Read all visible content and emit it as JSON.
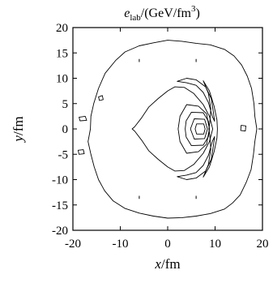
{
  "chart_data": {
    "type": "contour",
    "title": {
      "symbol": "e",
      "subscript": "lab",
      "unit_prefix": "/(GeV/fm",
      "unit_exponent": "3",
      "unit_suffix": ")"
    },
    "xlabel": {
      "symbol": "x",
      "unit": "/fm"
    },
    "ylabel": {
      "symbol": "y",
      "unit": "/fm"
    },
    "xlim": [
      -20,
      20
    ],
    "ylim": [
      -20,
      20
    ],
    "xticks": [
      -20,
      -10,
      0,
      10,
      20
    ],
    "yticks": [
      -20,
      -15,
      -10,
      -5,
      0,
      5,
      10,
      15,
      20
    ],
    "grid": false,
    "contours": [
      {
        "id": "outer-ring",
        "points": [
          [
            -3,
            17
          ],
          [
            0,
            17.5
          ],
          [
            3,
            17.3
          ],
          [
            6,
            16.9
          ],
          [
            9,
            16.6
          ],
          [
            12,
            15.7
          ],
          [
            14,
            14.4
          ],
          [
            15.6,
            12.6
          ],
          [
            16.8,
            10.4
          ],
          [
            17.7,
            8
          ],
          [
            18.2,
            5
          ],
          [
            18.4,
            2.5
          ],
          [
            18.8,
            0
          ],
          [
            18.4,
            -2.5
          ],
          [
            18.1,
            -5
          ],
          [
            17.6,
            -8
          ],
          [
            16.6,
            -10.5
          ],
          [
            15.3,
            -13
          ],
          [
            13.7,
            -14.6
          ],
          [
            12,
            -15.8
          ],
          [
            9,
            -16.7
          ],
          [
            6,
            -17.2
          ],
          [
            3,
            -17.5
          ],
          [
            0,
            -17.6
          ],
          [
            -3,
            -17.2
          ],
          [
            -6,
            -16.6
          ],
          [
            -9,
            -15.7
          ],
          [
            -11.5,
            -14.2
          ],
          [
            -13.3,
            -12.2
          ],
          [
            -14.6,
            -10
          ],
          [
            -15.5,
            -7.5
          ],
          [
            -16.2,
            -5
          ],
          [
            -16.8,
            -2.5
          ],
          [
            -16.3,
            0
          ],
          [
            -16.2,
            2.5
          ],
          [
            -15.6,
            5
          ],
          [
            -14.6,
            8
          ],
          [
            -13.2,
            11
          ],
          [
            -11,
            13.5
          ],
          [
            -9,
            15.2
          ],
          [
            -6,
            16.4
          ],
          [
            -3,
            17
          ]
        ]
      },
      {
        "id": "inner-region",
        "points": [
          [
            1.5,
            8.3
          ],
          [
            3.5,
            8.2
          ],
          [
            5.5,
            7
          ],
          [
            7.5,
            4.8
          ],
          [
            8.8,
            2.5
          ],
          [
            9.5,
            0
          ],
          [
            8.8,
            -2.5
          ],
          [
            7.5,
            -4.8
          ],
          [
            5.5,
            -7
          ],
          [
            3.5,
            -8.2
          ],
          [
            1.5,
            -8.3
          ],
          [
            0,
            -7.5
          ],
          [
            -2,
            -6
          ],
          [
            -4,
            -4.3
          ],
          [
            -5.5,
            -2.2
          ],
          [
            -7,
            -0.4
          ],
          [
            -7.5,
            0
          ],
          [
            -7,
            0.4
          ],
          [
            -5.5,
            2.2
          ],
          [
            -4,
            4.3
          ],
          [
            -2,
            6
          ],
          [
            0,
            7.5
          ],
          [
            1.5,
            8.3
          ]
        ]
      },
      {
        "id": "wing-top",
        "points": [
          [
            2,
            9.4
          ],
          [
            4,
            10
          ],
          [
            6,
            9.7
          ],
          [
            8,
            8.3
          ],
          [
            9.2,
            6
          ],
          [
            9.7,
            3
          ],
          [
            9.9,
            1.5
          ],
          [
            9.4,
            2.5
          ],
          [
            8.6,
            5.2
          ],
          [
            7.5,
            7.2
          ],
          [
            6,
            8.6
          ],
          [
            4,
            9.1
          ],
          [
            2,
            9.4
          ]
        ]
      },
      {
        "id": "wing-bottom",
        "points": [
          [
            2,
            -9.4
          ],
          [
            4,
            -10
          ],
          [
            6,
            -9.7
          ],
          [
            8,
            -8.3
          ],
          [
            9.2,
            -6
          ],
          [
            9.7,
            -3
          ],
          [
            9.9,
            -1.5
          ],
          [
            9.4,
            -2.5
          ],
          [
            8.6,
            -5.2
          ],
          [
            7.5,
            -7.2
          ],
          [
            6,
            -8.6
          ],
          [
            4,
            -9.1
          ],
          [
            2,
            -9.4
          ]
        ]
      },
      {
        "id": "core-1",
        "points": [
          [
            4,
            4.8
          ],
          [
            6.5,
            4.5
          ],
          [
            8.2,
            3
          ],
          [
            8.8,
            0
          ],
          [
            8.2,
            -3
          ],
          [
            6.5,
            -4.5
          ],
          [
            4,
            -4.8
          ],
          [
            2.6,
            -2.5
          ],
          [
            2.2,
            0
          ],
          [
            2.6,
            2.5
          ],
          [
            4,
            4.8
          ]
        ]
      },
      {
        "id": "core-2",
        "points": [
          [
            5,
            3.3
          ],
          [
            7.5,
            3.2
          ],
          [
            8.6,
            1.5
          ],
          [
            8.8,
            0
          ],
          [
            8.6,
            -1.5
          ],
          [
            7.5,
            -3.2
          ],
          [
            5,
            -3.3
          ],
          [
            3.9,
            -1.6
          ],
          [
            3.7,
            0
          ],
          [
            3.9,
            1.6
          ],
          [
            5,
            3.3
          ]
        ]
      },
      {
        "id": "core-3",
        "points": [
          [
            5.6,
            2
          ],
          [
            7.8,
            1.9
          ],
          [
            8.4,
            0
          ],
          [
            7.8,
            -1.9
          ],
          [
            5.6,
            -2
          ],
          [
            4.8,
            0
          ],
          [
            5.6,
            2
          ]
        ]
      },
      {
        "id": "core-4",
        "points": [
          [
            6.1,
            1
          ],
          [
            7.6,
            1
          ],
          [
            7.9,
            0
          ],
          [
            7.6,
            -1
          ],
          [
            6.1,
            -1
          ],
          [
            5.8,
            0
          ],
          [
            6.1,
            1
          ]
        ]
      },
      {
        "id": "shock-front",
        "points": [
          [
            7.5,
            9.5
          ],
          [
            8.6,
            7
          ],
          [
            9.1,
            4
          ],
          [
            8.9,
            1.5
          ],
          [
            8.7,
            0
          ],
          [
            8.9,
            -1.5
          ],
          [
            9.1,
            -4
          ],
          [
            8.6,
            -7
          ],
          [
            7.5,
            -9.5
          ],
          [
            8.8,
            -7.5
          ],
          [
            9.8,
            -4.5
          ],
          [
            10.4,
            -1.8
          ],
          [
            10.5,
            0
          ],
          [
            10.4,
            1.8
          ],
          [
            9.8,
            4.5
          ],
          [
            8.8,
            7.5
          ],
          [
            7.5,
            9.5
          ]
        ]
      },
      {
        "id": "blob-left-1",
        "points": [
          [
            -18.7,
            2.3
          ],
          [
            -17.4,
            2.5
          ],
          [
            -17.1,
            1.7
          ],
          [
            -18.5,
            1.6
          ],
          [
            -18.7,
            2.3
          ]
        ]
      },
      {
        "id": "blob-left-2",
        "points": [
          [
            -18.9,
            -4.2
          ],
          [
            -17.8,
            -4.1
          ],
          [
            -17.6,
            -4.9
          ],
          [
            -18.7,
            -5
          ],
          [
            -18.9,
            -4.2
          ]
        ]
      },
      {
        "id": "blob-left-3",
        "points": [
          [
            -14.6,
            6.3
          ],
          [
            -13.8,
            6.6
          ],
          [
            -13.6,
            5.8
          ],
          [
            -14.4,
            5.6
          ],
          [
            -14.6,
            6.3
          ]
        ]
      },
      {
        "id": "blob-right-1",
        "points": [
          [
            15.5,
            0.7
          ],
          [
            16.5,
            0.6
          ],
          [
            16.4,
            -0.4
          ],
          [
            15.4,
            -0.3
          ],
          [
            15.5,
            0.7
          ]
        ]
      }
    ],
    "markers": [
      {
        "id": "tick-upper-left",
        "x": -6,
        "from": 13.2,
        "to": 13.8
      },
      {
        "id": "tick-upper-right",
        "x": 6,
        "from": 13.2,
        "to": 13.8
      },
      {
        "id": "tick-lower-left",
        "x": -6,
        "from": -13.2,
        "to": -13.8
      },
      {
        "id": "tick-lower-right",
        "x": 6,
        "from": -13.2,
        "to": -13.8
      }
    ]
  }
}
